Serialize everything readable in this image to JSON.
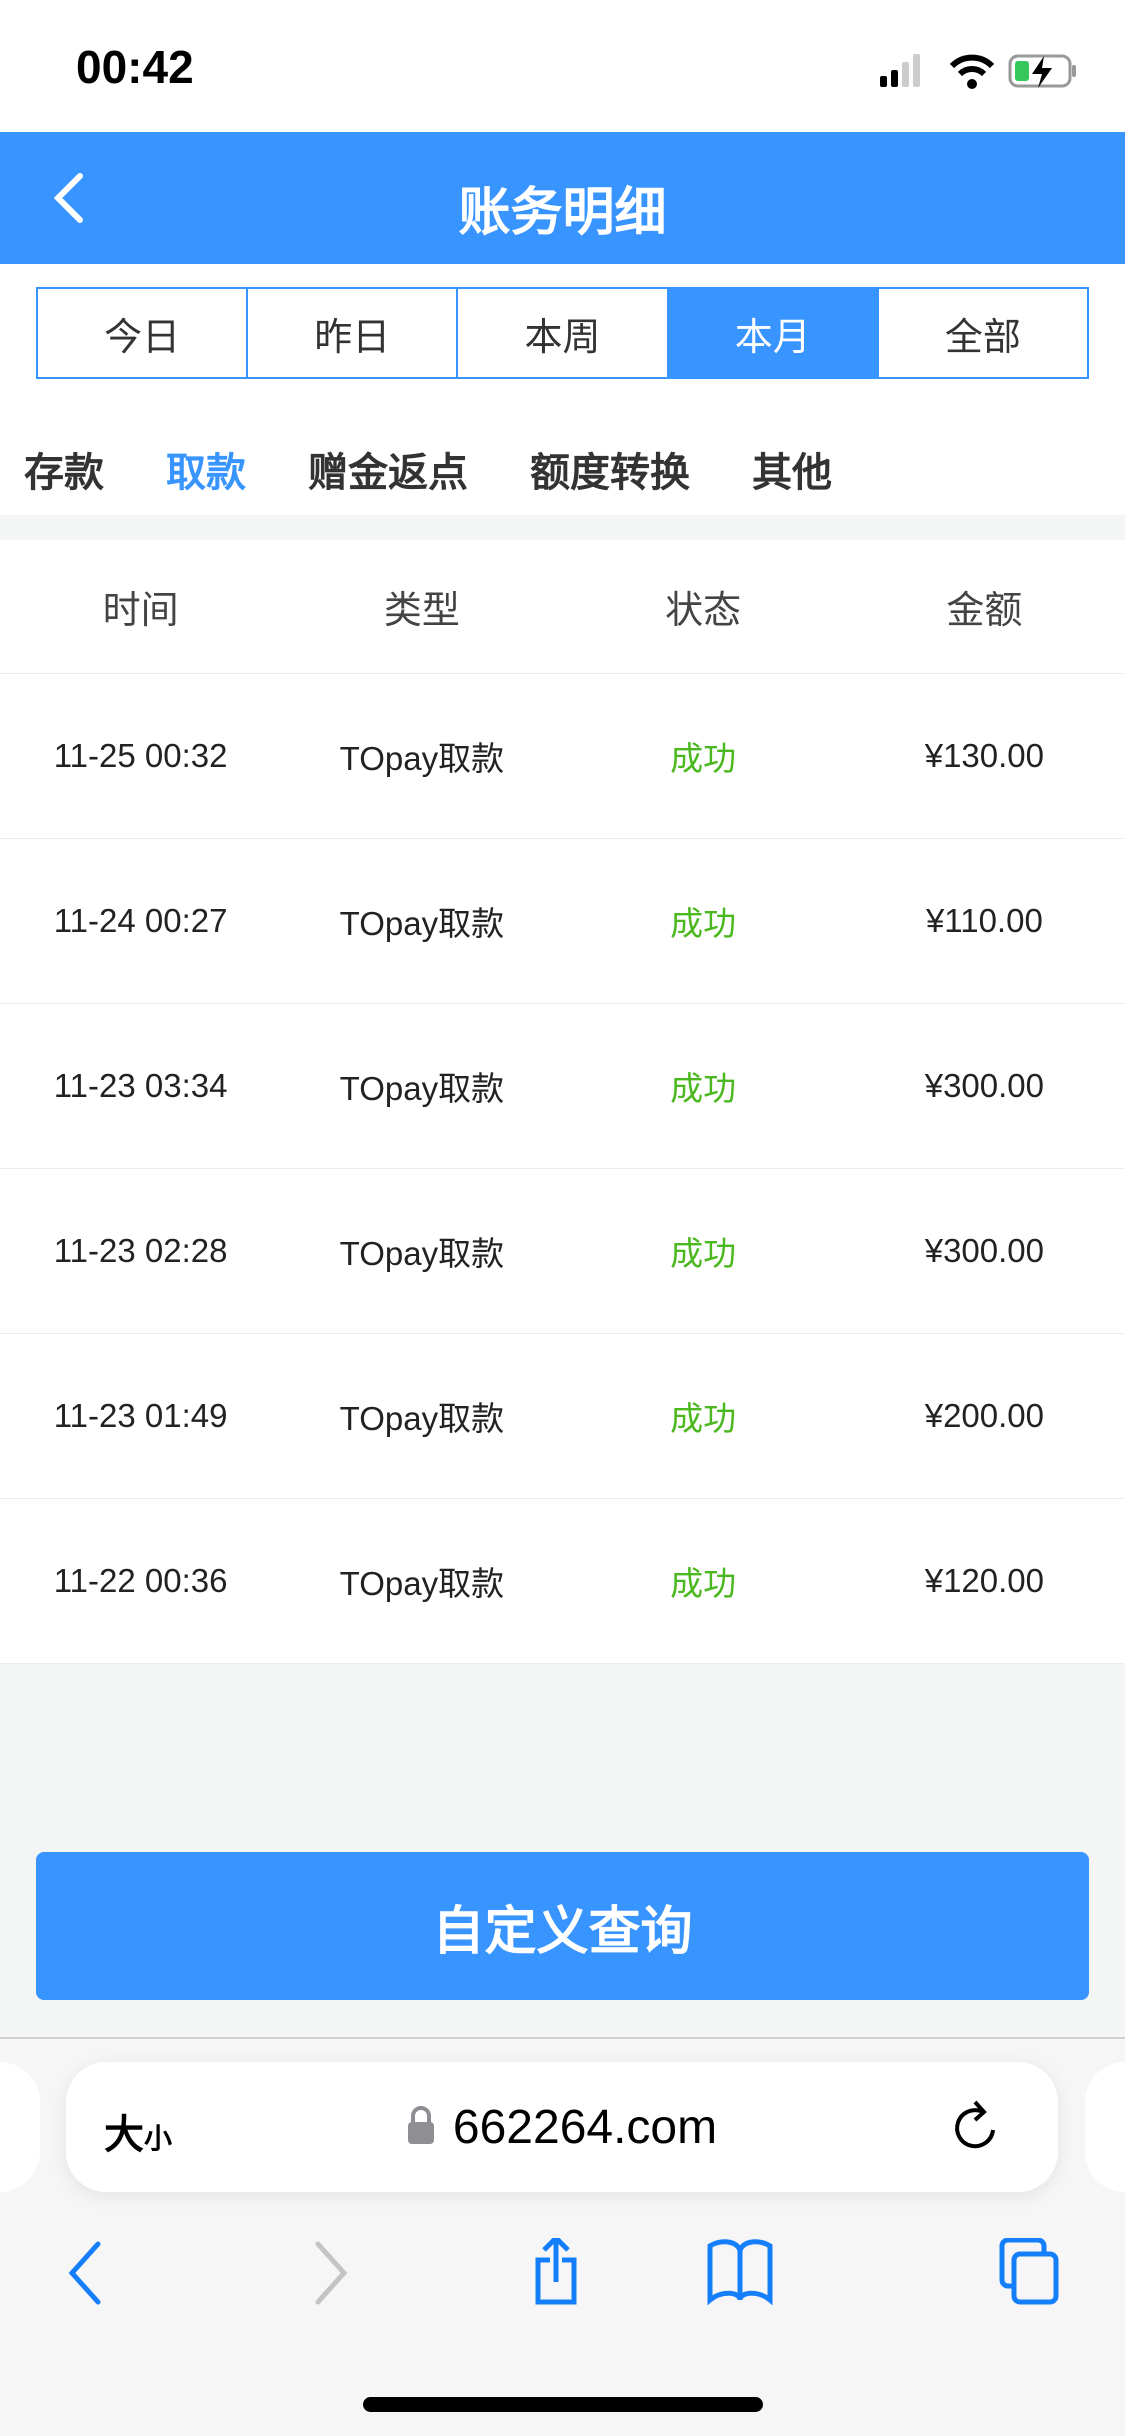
{
  "status_bar": {
    "time": "00:42"
  },
  "header": {
    "title": "账务明细",
    "back_icon": "chevron-left-icon"
  },
  "periods": [
    {
      "label": "今日",
      "active": false
    },
    {
      "label": "昨日",
      "active": false
    },
    {
      "label": "本周",
      "active": false
    },
    {
      "label": "本月",
      "active": true
    },
    {
      "label": "全部",
      "active": false
    }
  ],
  "categories": [
    {
      "label": "存款",
      "active": false
    },
    {
      "label": "取款",
      "active": true
    },
    {
      "label": "赠金返点",
      "active": false
    },
    {
      "label": "额度转换",
      "active": false
    },
    {
      "label": "其他",
      "active": false
    }
  ],
  "table": {
    "columns": [
      "时间",
      "类型",
      "状态",
      "金额"
    ],
    "rows": [
      [
        "11-25 00:32",
        "TOpay取款",
        "成功",
        "¥130.00"
      ],
      [
        "11-24 00:27",
        "TOpay取款",
        "成功",
        "¥110.00"
      ],
      [
        "11-23 03:34",
        "TOpay取款",
        "成功",
        "¥300.00"
      ],
      [
        "11-23 02:28",
        "TOpay取款",
        "成功",
        "¥300.00"
      ],
      [
        "11-23 01:49",
        "TOpay取款",
        "成功",
        "¥200.00"
      ],
      [
        "11-22 00:36",
        "TOpay取款",
        "成功",
        "¥120.00"
      ]
    ]
  },
  "custom_query_label": "自定义查询",
  "browser": {
    "text_size_big": "大",
    "text_size_small": "小",
    "url": "662264.com"
  },
  "colors": {
    "accent": "#3894ff",
    "success": "#4cb81f"
  }
}
